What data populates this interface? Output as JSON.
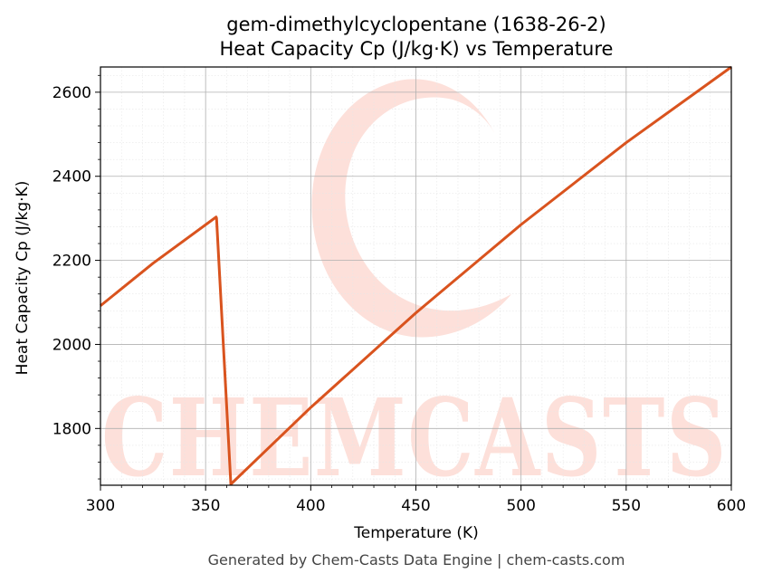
{
  "chart_data": {
    "type": "line",
    "title_line1": "gem-dimethylcyclopentane (1638-26-2)",
    "title_line2": "Heat Capacity Cp (J/kg·K) vs Temperature",
    "xlabel": "Temperature (K)",
    "ylabel": "Heat Capacity Cp (J/kg·K)",
    "xlim": [
      300,
      600
    ],
    "ylim": [
      1665,
      2660
    ],
    "x_ticks": [
      300,
      350,
      400,
      450,
      500,
      550,
      600
    ],
    "y_ticks": [
      1800,
      2000,
      2200,
      2400,
      2600
    ],
    "grid": true,
    "line_color": "#d9531e",
    "series": [
      {
        "x": [
          300,
          325,
          355,
          355.2,
          362,
          362.1,
          400,
          450,
          500,
          550,
          600
        ],
        "y": [
          2092,
          2193,
          2303,
          2300,
          1668,
          1668,
          1850,
          2075,
          2285,
          2480,
          2660
        ]
      }
    ]
  },
  "watermark": {
    "text": "CHEMCASTS",
    "color": "#fde0da"
  },
  "footer": "Generated by Chem-Casts Data Engine | chem-casts.com"
}
